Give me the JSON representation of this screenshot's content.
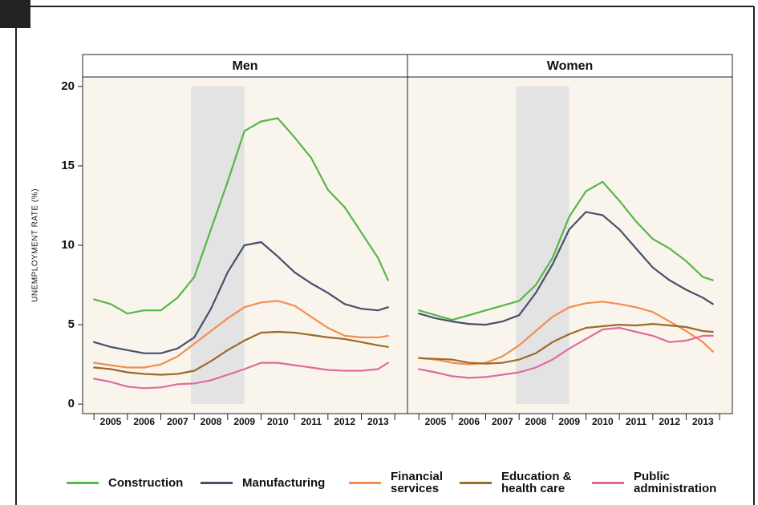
{
  "chart_data": [
    {
      "type": "line",
      "title": "Men",
      "y_label": "UNEMPLOYMENT RATE (%)",
      "x": [
        2005,
        2005.5,
        2006,
        2006.5,
        2007,
        2007.5,
        2008,
        2008.5,
        2009,
        2009.5,
        2010,
        2010.5,
        2011,
        2011.5,
        2012,
        2012.5,
        2013,
        2013.5,
        2013.8
      ],
      "xlim": [
        2004.66,
        2014.38
      ],
      "xticks": [
        2005,
        2006,
        2007,
        2008,
        2009,
        2010,
        2011,
        2012,
        2013,
        2014
      ],
      "categories": [
        "2005",
        "2006",
        "2007",
        "2008",
        "2009",
        "2010",
        "2011",
        "2012",
        "2013"
      ],
      "ylim": [
        -0.6,
        20.6
      ],
      "yticks": [
        0,
        5,
        10,
        15,
        20
      ],
      "shaded_period": [
        2007.9,
        2009.5
      ],
      "series": [
        {
          "name": "Construction",
          "color": "#55b748",
          "values": [
            6.6,
            6.3,
            5.7,
            5.9,
            5.9,
            6.7,
            8.0,
            11,
            14,
            17.2,
            17.8,
            18.0,
            16.8,
            15.5,
            13.5,
            12.4,
            10.8,
            9.2,
            7.8
          ]
        },
        {
          "name": "Manufacturing",
          "color": "#46506b",
          "values": [
            3.9,
            3.6,
            3.4,
            3.2,
            3.2,
            3.5,
            4.2,
            6.0,
            8.3,
            10.0,
            10.2,
            9.3,
            8.3,
            7.6,
            7.0,
            6.3,
            6.0,
            5.9,
            6.1
          ]
        },
        {
          "name": "Financial services",
          "color": "#f28e4f",
          "values": [
            2.6,
            2.45,
            2.3,
            2.3,
            2.5,
            3.0,
            3.8,
            4.6,
            5.4,
            6.1,
            6.4,
            6.5,
            6.2,
            5.5,
            4.8,
            4.3,
            4.2,
            4.2,
            4.3
          ]
        },
        {
          "name": "Education & health care",
          "color": "#9a6b2a",
          "values": [
            2.3,
            2.2,
            2.0,
            1.9,
            1.85,
            1.9,
            2.1,
            2.7,
            3.4,
            4.0,
            4.5,
            4.55,
            4.5,
            4.35,
            4.2,
            4.1,
            3.9,
            3.7,
            3.6
          ]
        },
        {
          "name": "Public administration",
          "color": "#e06aa0",
          "values": [
            1.6,
            1.4,
            1.1,
            1.0,
            1.05,
            1.25,
            1.3,
            1.5,
            1.85,
            2.2,
            2.6,
            2.6,
            2.45,
            2.3,
            2.15,
            2.1,
            2.1,
            2.2,
            2.6
          ]
        }
      ]
    },
    {
      "type": "line",
      "title": "Women",
      "x": [
        2005,
        2005.5,
        2006,
        2006.5,
        2007,
        2007.5,
        2008,
        2008.5,
        2009,
        2009.5,
        2010,
        2010.5,
        2011,
        2011.5,
        2012,
        2012.5,
        2013,
        2013.5,
        2013.8
      ],
      "xlim": [
        2004.66,
        2014.38
      ],
      "xticks": [
        2005,
        2006,
        2007,
        2008,
        2009,
        2010,
        2011,
        2012,
        2013,
        2014
      ],
      "categories": [
        "2005",
        "2006",
        "2007",
        "2008",
        "2009",
        "2010",
        "2011",
        "2012",
        "2013"
      ],
      "ylim": [
        -0.6,
        20.6
      ],
      "shaded_period": [
        2007.9,
        2009.5
      ],
      "series": [
        {
          "name": "Construction",
          "color": "#55b748",
          "values": [
            5.9,
            5.6,
            5.3,
            5.6,
            5.9,
            6.2,
            6.5,
            7.5,
            9.2,
            11.8,
            13.4,
            14.0,
            12.8,
            11.5,
            10.4,
            9.8,
            9.0,
            8.0,
            7.8
          ]
        },
        {
          "name": "Manufacturing",
          "color": "#46506b",
          "values": [
            5.7,
            5.4,
            5.2,
            5.05,
            5.0,
            5.2,
            5.6,
            7.0,
            8.8,
            11.0,
            12.1,
            11.9,
            11.0,
            9.8,
            8.6,
            7.8,
            7.2,
            6.7,
            6.3
          ]
        },
        {
          "name": "Financial services",
          "color": "#f28e4f",
          "values": [
            2.9,
            2.8,
            2.6,
            2.5,
            2.6,
            3.0,
            3.7,
            4.6,
            5.5,
            6.1,
            6.35,
            6.45,
            6.3,
            6.1,
            5.8,
            5.2,
            4.6,
            3.9,
            3.3
          ]
        },
        {
          "name": "Education & health care",
          "color": "#9a6b2a",
          "values": [
            2.9,
            2.85,
            2.8,
            2.6,
            2.55,
            2.6,
            2.8,
            3.2,
            3.9,
            4.4,
            4.8,
            4.9,
            5.0,
            4.95,
            5.05,
            4.95,
            4.85,
            4.6,
            4.55
          ]
        },
        {
          "name": "Public administration",
          "color": "#e06aa0",
          "values": [
            2.2,
            2.0,
            1.75,
            1.65,
            1.7,
            1.85,
            2.0,
            2.3,
            2.8,
            3.5,
            4.1,
            4.7,
            4.8,
            4.55,
            4.3,
            3.9,
            4.0,
            4.3,
            4.3
          ]
        }
      ]
    }
  ]
}
